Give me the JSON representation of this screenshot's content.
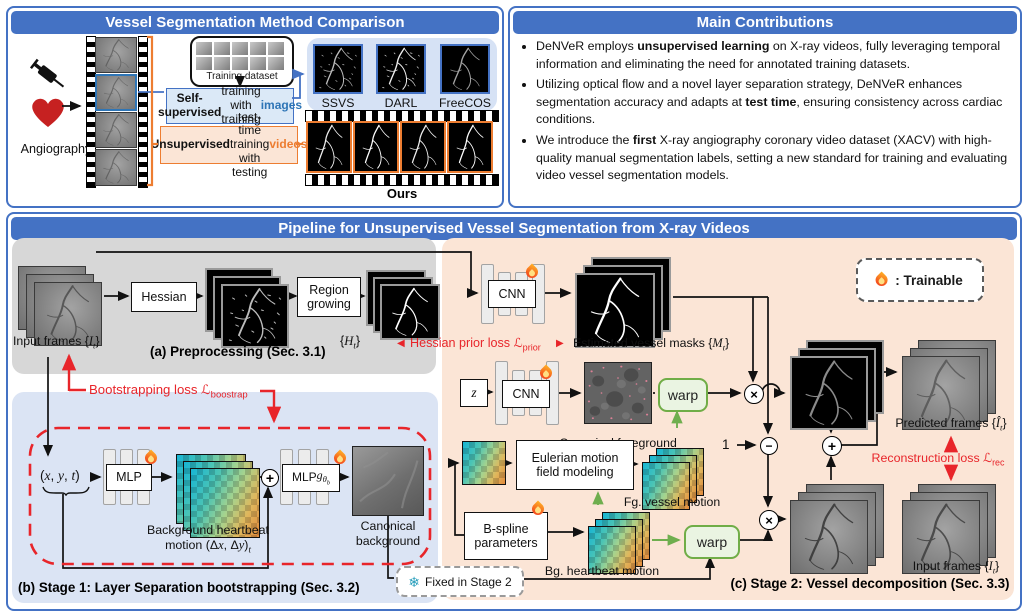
{
  "figure": {
    "comparison": {
      "title": "Vessel Segmentation Method Comparison",
      "angiography": "Angiography",
      "training_dataset": "Training dataset",
      "self_supervised_html": "<b>Self-supervised</b> training<br>with training <span class='c-blue'>images</span>",
      "unsupervised_html": "<b>Unsupervised</b> test-time<br>training with testing <span class='c-orange'>videos</span>",
      "methods": [
        "SSVS",
        "DARL",
        "FreeCOS"
      ],
      "ours": "Ours"
    },
    "contributions": {
      "title": "Main Contributions",
      "bullets": [
        "DeNVeR employs <b>unsupervised learning</b> on X-ray videos, fully leveraging temporal information and eliminating the need for annotated training datasets.",
        "Utilizing optical flow and a novel layer separation strategy, DeNVeR enhances segmentation accuracy and adapts at <b>test time</b>, ensuring consistency across cardiac conditions.",
        "We introduce the <b>first</b> X-ray angiography coronary video dataset (XACV) with high-quality manual segmentation labels, setting a new standard for training and evaluating video vessel segmentation models."
      ]
    },
    "pipeline": {
      "title": "Pipeline for Unsupervised Vessel Segmentation from X-ray Videos",
      "preprocessing": {
        "input_frames_html": "Input frames {<i>I<sub>t</sub></i>}",
        "hessian": "Hessian",
        "region_growing_html": "Region<br>growing",
        "ht_html": "{<i>H<sub>t</sub></i>}",
        "caption": "(a) Preprocessing (Sec. 3.1)"
      },
      "stage1": {
        "bootstrapping_loss_html": "Bootstrapping loss <span class='scr'>&#8466;</span><sub>boostrap</sub>",
        "xyt_html": "(<i>x</i>, <i>y</i>, <i>t</i>)",
        "mlp": "MLP",
        "mlp_g_html": "MLP <i>g<sub>&theta;<sub>b</sub></sub></i>",
        "bg_heartbeat_html": "Background heartbeat<br>motion (&Delta;<i>x</i>, &Delta;<i>y</i>)<sub><i>t</i></sub>",
        "canonical_background_html": "Canonical<br>background",
        "caption": "(b) Stage 1: Layer Separation bootstrapping (Sec. 3.2)"
      },
      "stage2": {
        "cnn": "CNN",
        "z_html": "<i>z</i>",
        "hessian_prior_html": "Hessian prior loss <span class='scr'>&#8466;</span><sub>prior</sub>",
        "estimated_masks_html": "Estimated vessel masks {<i>M<sub>t</sub></i>}",
        "canonical_foreground": "Canonical foreground",
        "warp": "warp",
        "eulerian_html": "Eulerian motion<br>field modeling",
        "fg_motion": "Fg. vessel motion",
        "bspline_html": "B-spline<br>parameters",
        "bg_motion": "Bg. heartbeat motion",
        "one": "1",
        "predicted_html": "Predicted frames {<i>&Icirc;<sub>t</sub></i>}",
        "reconstruction_html": "Reconstruction loss <span class='scr'>&#8466;</span><sub>rec</sub>",
        "input_frames_html": "Input frames {<i>I<sub>t</sub></i>}",
        "trainable": ": Trainable",
        "fixed": "Fixed in Stage 2",
        "caption": "(c) Stage 2: Vessel decomposition (Sec. 3.3)"
      },
      "nodes": {
        "add": "+",
        "subtract": "−",
        "multiply": "×"
      }
    },
    "colors": {
      "header_blue": "#4472C4",
      "accent_blue": "#2E75B6",
      "accent_orange": "#ED7D31",
      "loss_red": "#E8252A",
      "warp_green": "#70AD47",
      "panel_a_gray": "#D7D7D7",
      "panel_b_blue": "#DBE4F4",
      "panel_c_peach": "#FBE5D6"
    }
  }
}
